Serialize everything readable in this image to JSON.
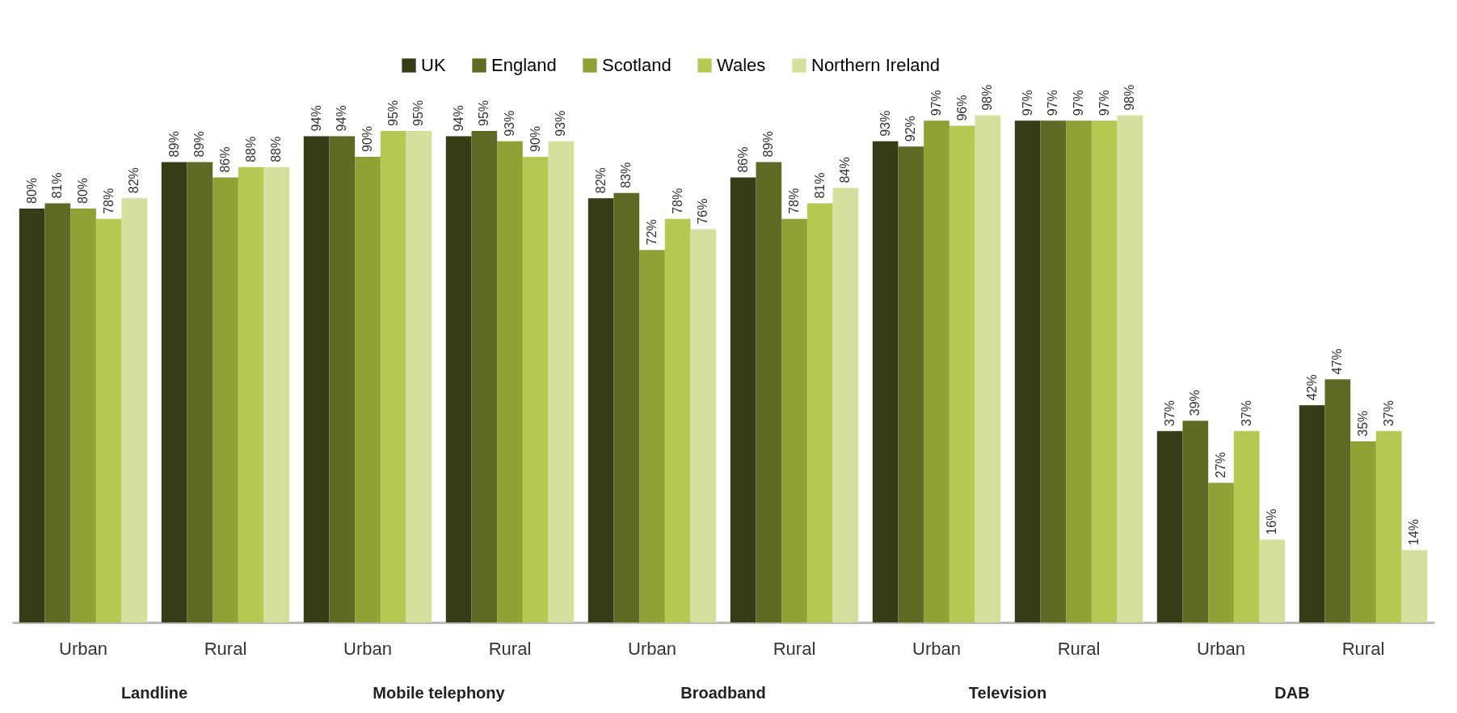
{
  "chart_data": {
    "type": "bar",
    "categories": [
      "Urban",
      "Rural",
      "Urban",
      "Rural",
      "Urban",
      "Rural",
      "Urban",
      "Rural",
      "Urban",
      "Rural"
    ],
    "annotations": [
      "Landline",
      "Mobile telephony",
      "Broadband",
      "Television",
      "DAB"
    ],
    "series": [
      {
        "name": "UK",
        "color": "#353c16",
        "values": [
          80,
          89,
          94,
          94,
          82,
          86,
          93,
          97,
          37,
          42
        ],
        "value_labels": [
          "80%",
          "89%",
          "94%",
          "94%",
          "82%",
          "86%",
          "93%",
          "97%",
          "37%",
          "42%"
        ]
      },
      {
        "name": "England",
        "color": "#5f6b24",
        "values": [
          81,
          89,
          94,
          95,
          83,
          89,
          92,
          97,
          39,
          47
        ],
        "value_labels": [
          "81%",
          "89%",
          "94%",
          "95%",
          "83%",
          "89%",
          "92%",
          "97%",
          "39%",
          "47%"
        ]
      },
      {
        "name": "Scotland",
        "color": "#8fa134",
        "values": [
          80,
          86,
          90,
          93,
          72,
          78,
          97,
          97,
          27,
          35
        ],
        "value_labels": [
          "80%",
          "86%",
          "90%",
          "93%",
          "72%",
          "78%",
          "97%",
          "97%",
          "27%",
          "35%"
        ]
      },
      {
        "name": "Wales",
        "color": "#b5c952",
        "values": [
          78,
          88,
          95,
          90,
          78,
          81,
          96,
          97,
          37,
          37
        ],
        "value_labels": [
          "78%",
          "88%",
          "95%",
          "90%",
          "78%",
          "81%",
          "96%",
          "97%",
          "37%",
          "37%"
        ]
      },
      {
        "name": "Northern Ireland",
        "color": "#d4e09b",
        "values": [
          82,
          88,
          95,
          93,
          76,
          84,
          98,
          98,
          16,
          14
        ],
        "value_labels": [
          "82%",
          "88%",
          "95%",
          "93%",
          "76%",
          "84%",
          "98%",
          "98%",
          "16%",
          "14%"
        ]
      }
    ],
    "legend": "top",
    "tick_labels": "x"
  }
}
